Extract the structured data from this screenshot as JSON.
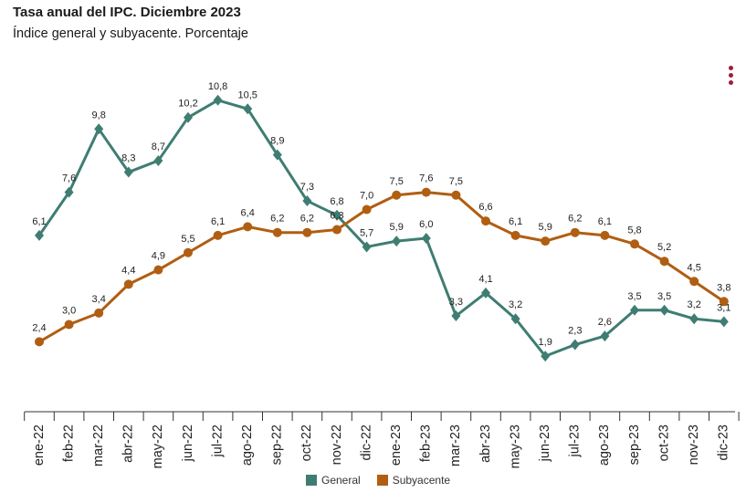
{
  "title": "Tasa anual del IPC. Diciembre 2023",
  "subtitle": "Índice general y subyacente. Porcentaje",
  "menu_icon": "vertical-ellipsis-icon",
  "chart_data": {
    "type": "line",
    "title": "Tasa anual del IPC. Diciembre 2023",
    "subtitle": "Índice general y subyacente. Porcentaje",
    "xlabel": "",
    "ylabel": "",
    "grid": false,
    "legend": "bottom-center",
    "ylim": [
      0,
      12
    ],
    "categories": [
      "ene-22",
      "feb-22",
      "mar-22",
      "abr-22",
      "may-22",
      "jun-22",
      "jul-22",
      "ago-22",
      "sep-22",
      "oct-22",
      "nov-22",
      "dic-22",
      "ene-23",
      "feb-23",
      "mar-23",
      "abr-23",
      "may-23",
      "jun-23",
      "jul-23",
      "ago-23",
      "sep-23",
      "oct-23",
      "nov-23",
      "dic-23"
    ],
    "series": [
      {
        "name": "General",
        "color": "#3f7d72",
        "marker": "diamond",
        "values": [
          6.1,
          7.6,
          9.8,
          8.3,
          8.7,
          10.2,
          10.8,
          10.5,
          8.9,
          7.3,
          6.8,
          5.7,
          5.9,
          6.0,
          3.3,
          4.1,
          3.2,
          1.9,
          2.3,
          2.6,
          3.5,
          3.5,
          3.2,
          3.1
        ],
        "labels": [
          "6,1",
          "7,6",
          "9,8",
          "8,3",
          "8,7",
          "10,2",
          "10,8",
          "10,5",
          "8,9",
          "7,3",
          "6,8",
          "5,7",
          "5,9",
          "6,0",
          "3,3",
          "4,1",
          "3,2",
          "1,9",
          "2,3",
          "2,6",
          "3,5",
          "3,5",
          "3,2",
          "3,1"
        ]
      },
      {
        "name": "Subyacente",
        "color": "#b05e12",
        "marker": "circle",
        "values": [
          2.4,
          3.0,
          3.4,
          4.4,
          4.9,
          5.5,
          6.1,
          6.4,
          6.2,
          6.2,
          6.3,
          7.0,
          7.5,
          7.6,
          7.5,
          6.6,
          6.1,
          5.9,
          6.2,
          6.1,
          5.8,
          5.2,
          4.5,
          3.8
        ],
        "labels": [
          "2,4",
          "3,0",
          "3,4",
          "4,4",
          "4,9",
          "5,5",
          "6,1",
          "6,4",
          "6,2",
          "6,2",
          "6,3",
          "7,0",
          "7,5",
          "7,6",
          "7,5",
          "6,6",
          "6,1",
          "5,9",
          "6,2",
          "6,1",
          "5,8",
          "5,2",
          "4,5",
          "3,8"
        ]
      }
    ]
  }
}
